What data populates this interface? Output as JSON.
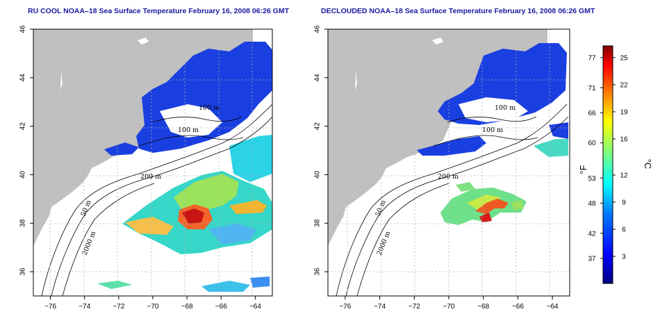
{
  "panels": [
    {
      "id": "left",
      "title": "RU COOL NOAA–18 Sea Surface Temperature February 16, 2008 06:26 GMT",
      "contour_labels": [
        "100 m",
        "100 m",
        "200 m",
        "50 m",
        "2000 m"
      ]
    },
    {
      "id": "right",
      "title": "DECLOUDED NOAA–18 Sea Surface Temperature February 16, 2008 06:26 GMT",
      "contour_labels": [
        "100 m",
        "100 m",
        "200 m",
        "50 m",
        "2000 m"
      ]
    }
  ],
  "axes": {
    "x_ticks": [
      "−76",
      "−74",
      "−72",
      "−70",
      "−68",
      "−66",
      "−64"
    ],
    "y_ticks": [
      "36",
      "38",
      "40",
      "42",
      "44",
      "46"
    ],
    "x_range": [
      -77,
      -63
    ],
    "y_range": [
      35,
      46
    ]
  },
  "colorbar": {
    "fahrenheit_ticks": [
      "77",
      "71",
      "66",
      "60",
      "53",
      "48",
      "42",
      "37"
    ],
    "celsius_ticks": [
      "25",
      "22",
      "19",
      "16",
      "12",
      "9",
      "6",
      "3"
    ],
    "fahrenheit_label": "°F",
    "celsius_label": "°C",
    "colors": [
      "#00007f",
      "#0000ff",
      "#007fff",
      "#00ffff",
      "#7fff7f",
      "#ffff00",
      "#ff7f00",
      "#ff0000",
      "#7f0000"
    ]
  },
  "colors": {
    "land": "#c0c0c0",
    "title": "#1a1aa0",
    "grid": "#b0b0b0"
  }
}
